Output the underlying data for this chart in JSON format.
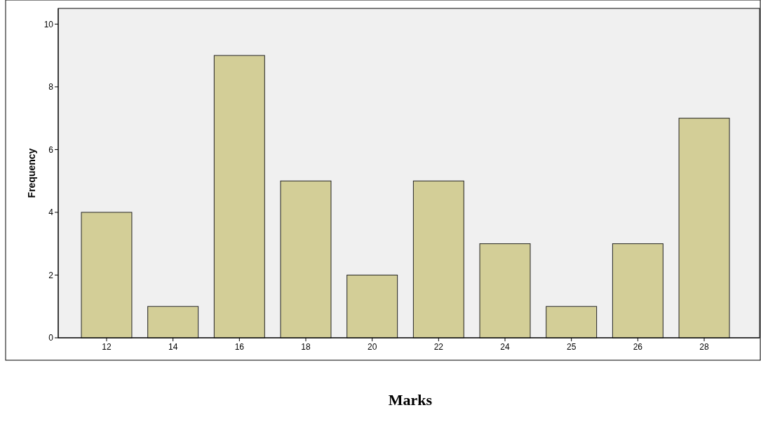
{
  "chart_data": {
    "type": "bar",
    "xlabel": "Marks",
    "ylabel": "Frequency",
    "categories": [
      "12",
      "14",
      "16",
      "18",
      "20",
      "22",
      "24",
      "25",
      "26",
      "28"
    ],
    "values": [
      4,
      1,
      9,
      5,
      2,
      5,
      3,
      1,
      3,
      7
    ],
    "color": "#d3ce97",
    "ylim": [
      0,
      10.5
    ],
    "yticks": [
      0,
      2,
      4,
      6,
      8,
      10
    ],
    "grid": false
  }
}
